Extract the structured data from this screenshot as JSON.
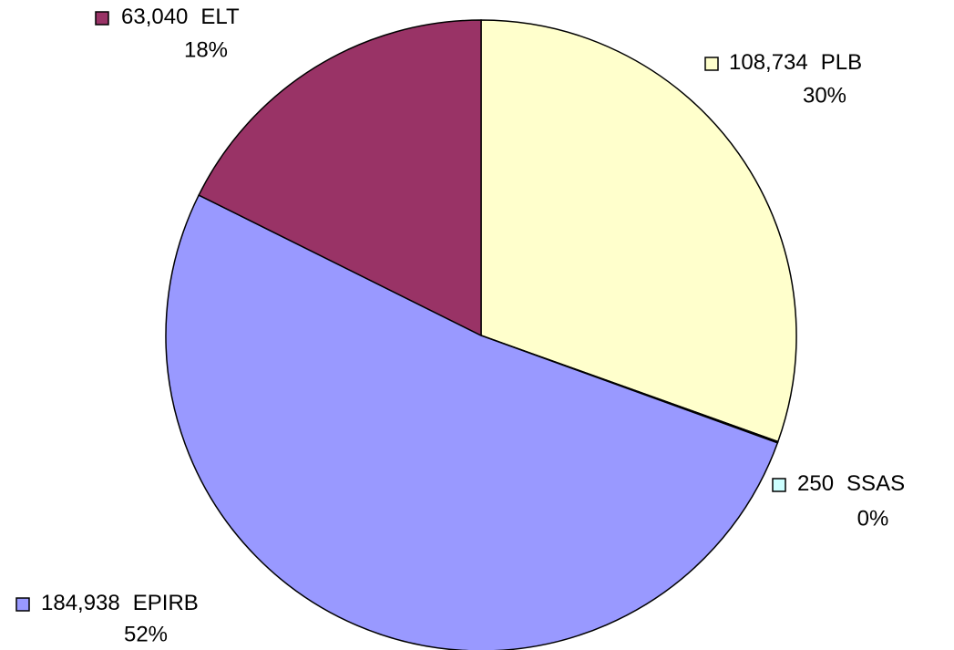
{
  "chart_data": {
    "type": "pie",
    "categories": [
      "PLB",
      "SSAS",
      "EPIRB",
      "ELT"
    ],
    "values": [
      108734,
      250,
      184938,
      63040
    ],
    "value_labels": [
      "108,734",
      "250",
      "184,938",
      "63,040"
    ],
    "percent_labels": [
      "30%",
      "0%",
      "52%",
      "18%"
    ],
    "colors": [
      "#ffffcc",
      "#ccffff",
      "#9999ff",
      "#993366"
    ]
  }
}
